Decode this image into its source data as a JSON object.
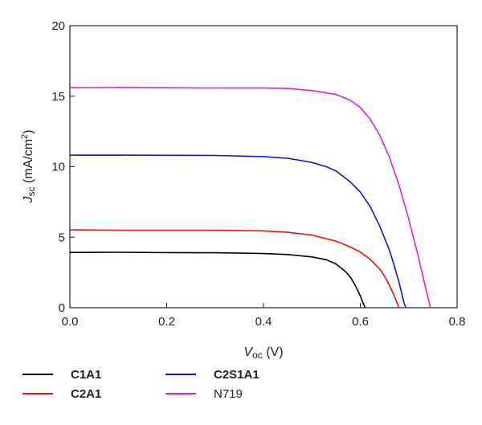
{
  "chart_data": {
    "type": "line",
    "xlabel_main": "V",
    "xlabel_sub": "oc",
    "xlabel_unit": " (V)",
    "ylabel_main": "J",
    "ylabel_sub": "sc",
    "ylabel_unit_pre": " (mA/cm",
    "ylabel_unit_sup": "2",
    "ylabel_unit_post": ")",
    "xlim": [
      0.0,
      0.8
    ],
    "ylim": [
      0,
      20
    ],
    "xticks": [
      0.0,
      0.2,
      0.4,
      0.6,
      0.8
    ],
    "xtick_labels": [
      "0.0",
      "0.2",
      "0.4",
      "0.6",
      "0.8"
    ],
    "yticks": [
      0,
      5,
      10,
      15,
      20
    ],
    "ytick_labels": [
      "0",
      "5",
      "10",
      "15",
      "20"
    ],
    "grid": false,
    "legend_position": "bottom",
    "series": [
      {
        "name": "C1A1",
        "color": "#000000",
        "bold": true,
        "points": [
          [
            0.0,
            3.92
          ],
          [
            0.1,
            3.93
          ],
          [
            0.2,
            3.91
          ],
          [
            0.3,
            3.9
          ],
          [
            0.4,
            3.84
          ],
          [
            0.45,
            3.77
          ],
          [
            0.5,
            3.6
          ],
          [
            0.53,
            3.4
          ],
          [
            0.55,
            3.1
          ],
          [
            0.57,
            2.55
          ],
          [
            0.58,
            2.15
          ],
          [
            0.59,
            1.55
          ],
          [
            0.6,
            0.85
          ],
          [
            0.605,
            0.4
          ],
          [
            0.61,
            0.0
          ]
        ]
      },
      {
        "name": "C2A1",
        "color": "#e8120c",
        "bold": true,
        "points": [
          [
            0.0,
            5.52
          ],
          [
            0.1,
            5.5
          ],
          [
            0.2,
            5.5
          ],
          [
            0.3,
            5.5
          ],
          [
            0.4,
            5.45
          ],
          [
            0.45,
            5.35
          ],
          [
            0.5,
            5.15
          ],
          [
            0.55,
            4.72
          ],
          [
            0.58,
            4.3
          ],
          [
            0.6,
            3.95
          ],
          [
            0.62,
            3.45
          ],
          [
            0.64,
            2.75
          ],
          [
            0.65,
            2.25
          ],
          [
            0.66,
            1.6
          ],
          [
            0.67,
            0.85
          ],
          [
            0.68,
            0.0
          ]
        ]
      },
      {
        "name": "C2S1A1",
        "color": "#1414d0",
        "bold": true,
        "points": [
          [
            0.0,
            10.82
          ],
          [
            0.1,
            10.82
          ],
          [
            0.2,
            10.81
          ],
          [
            0.3,
            10.8
          ],
          [
            0.4,
            10.72
          ],
          [
            0.45,
            10.6
          ],
          [
            0.5,
            10.3
          ],
          [
            0.53,
            10.0
          ],
          [
            0.55,
            9.7
          ],
          [
            0.58,
            8.9
          ],
          [
            0.6,
            8.2
          ],
          [
            0.62,
            7.2
          ],
          [
            0.64,
            5.8
          ],
          [
            0.66,
            4.1
          ],
          [
            0.67,
            3.0
          ],
          [
            0.68,
            1.8
          ],
          [
            0.69,
            0.4
          ],
          [
            0.694,
            0.0
          ]
        ]
      },
      {
        "name": "N719",
        "color": "#e020e0",
        "bold": false,
        "points": [
          [
            0.0,
            15.6
          ],
          [
            0.1,
            15.62
          ],
          [
            0.2,
            15.6
          ],
          [
            0.3,
            15.58
          ],
          [
            0.4,
            15.58
          ],
          [
            0.45,
            15.55
          ],
          [
            0.5,
            15.4
          ],
          [
            0.55,
            15.12
          ],
          [
            0.58,
            14.7
          ],
          [
            0.6,
            14.2
          ],
          [
            0.62,
            13.4
          ],
          [
            0.64,
            12.25
          ],
          [
            0.66,
            10.7
          ],
          [
            0.68,
            8.7
          ],
          [
            0.7,
            6.3
          ],
          [
            0.72,
            3.6
          ],
          [
            0.735,
            1.4
          ],
          [
            0.745,
            0.0
          ]
        ]
      }
    ]
  }
}
